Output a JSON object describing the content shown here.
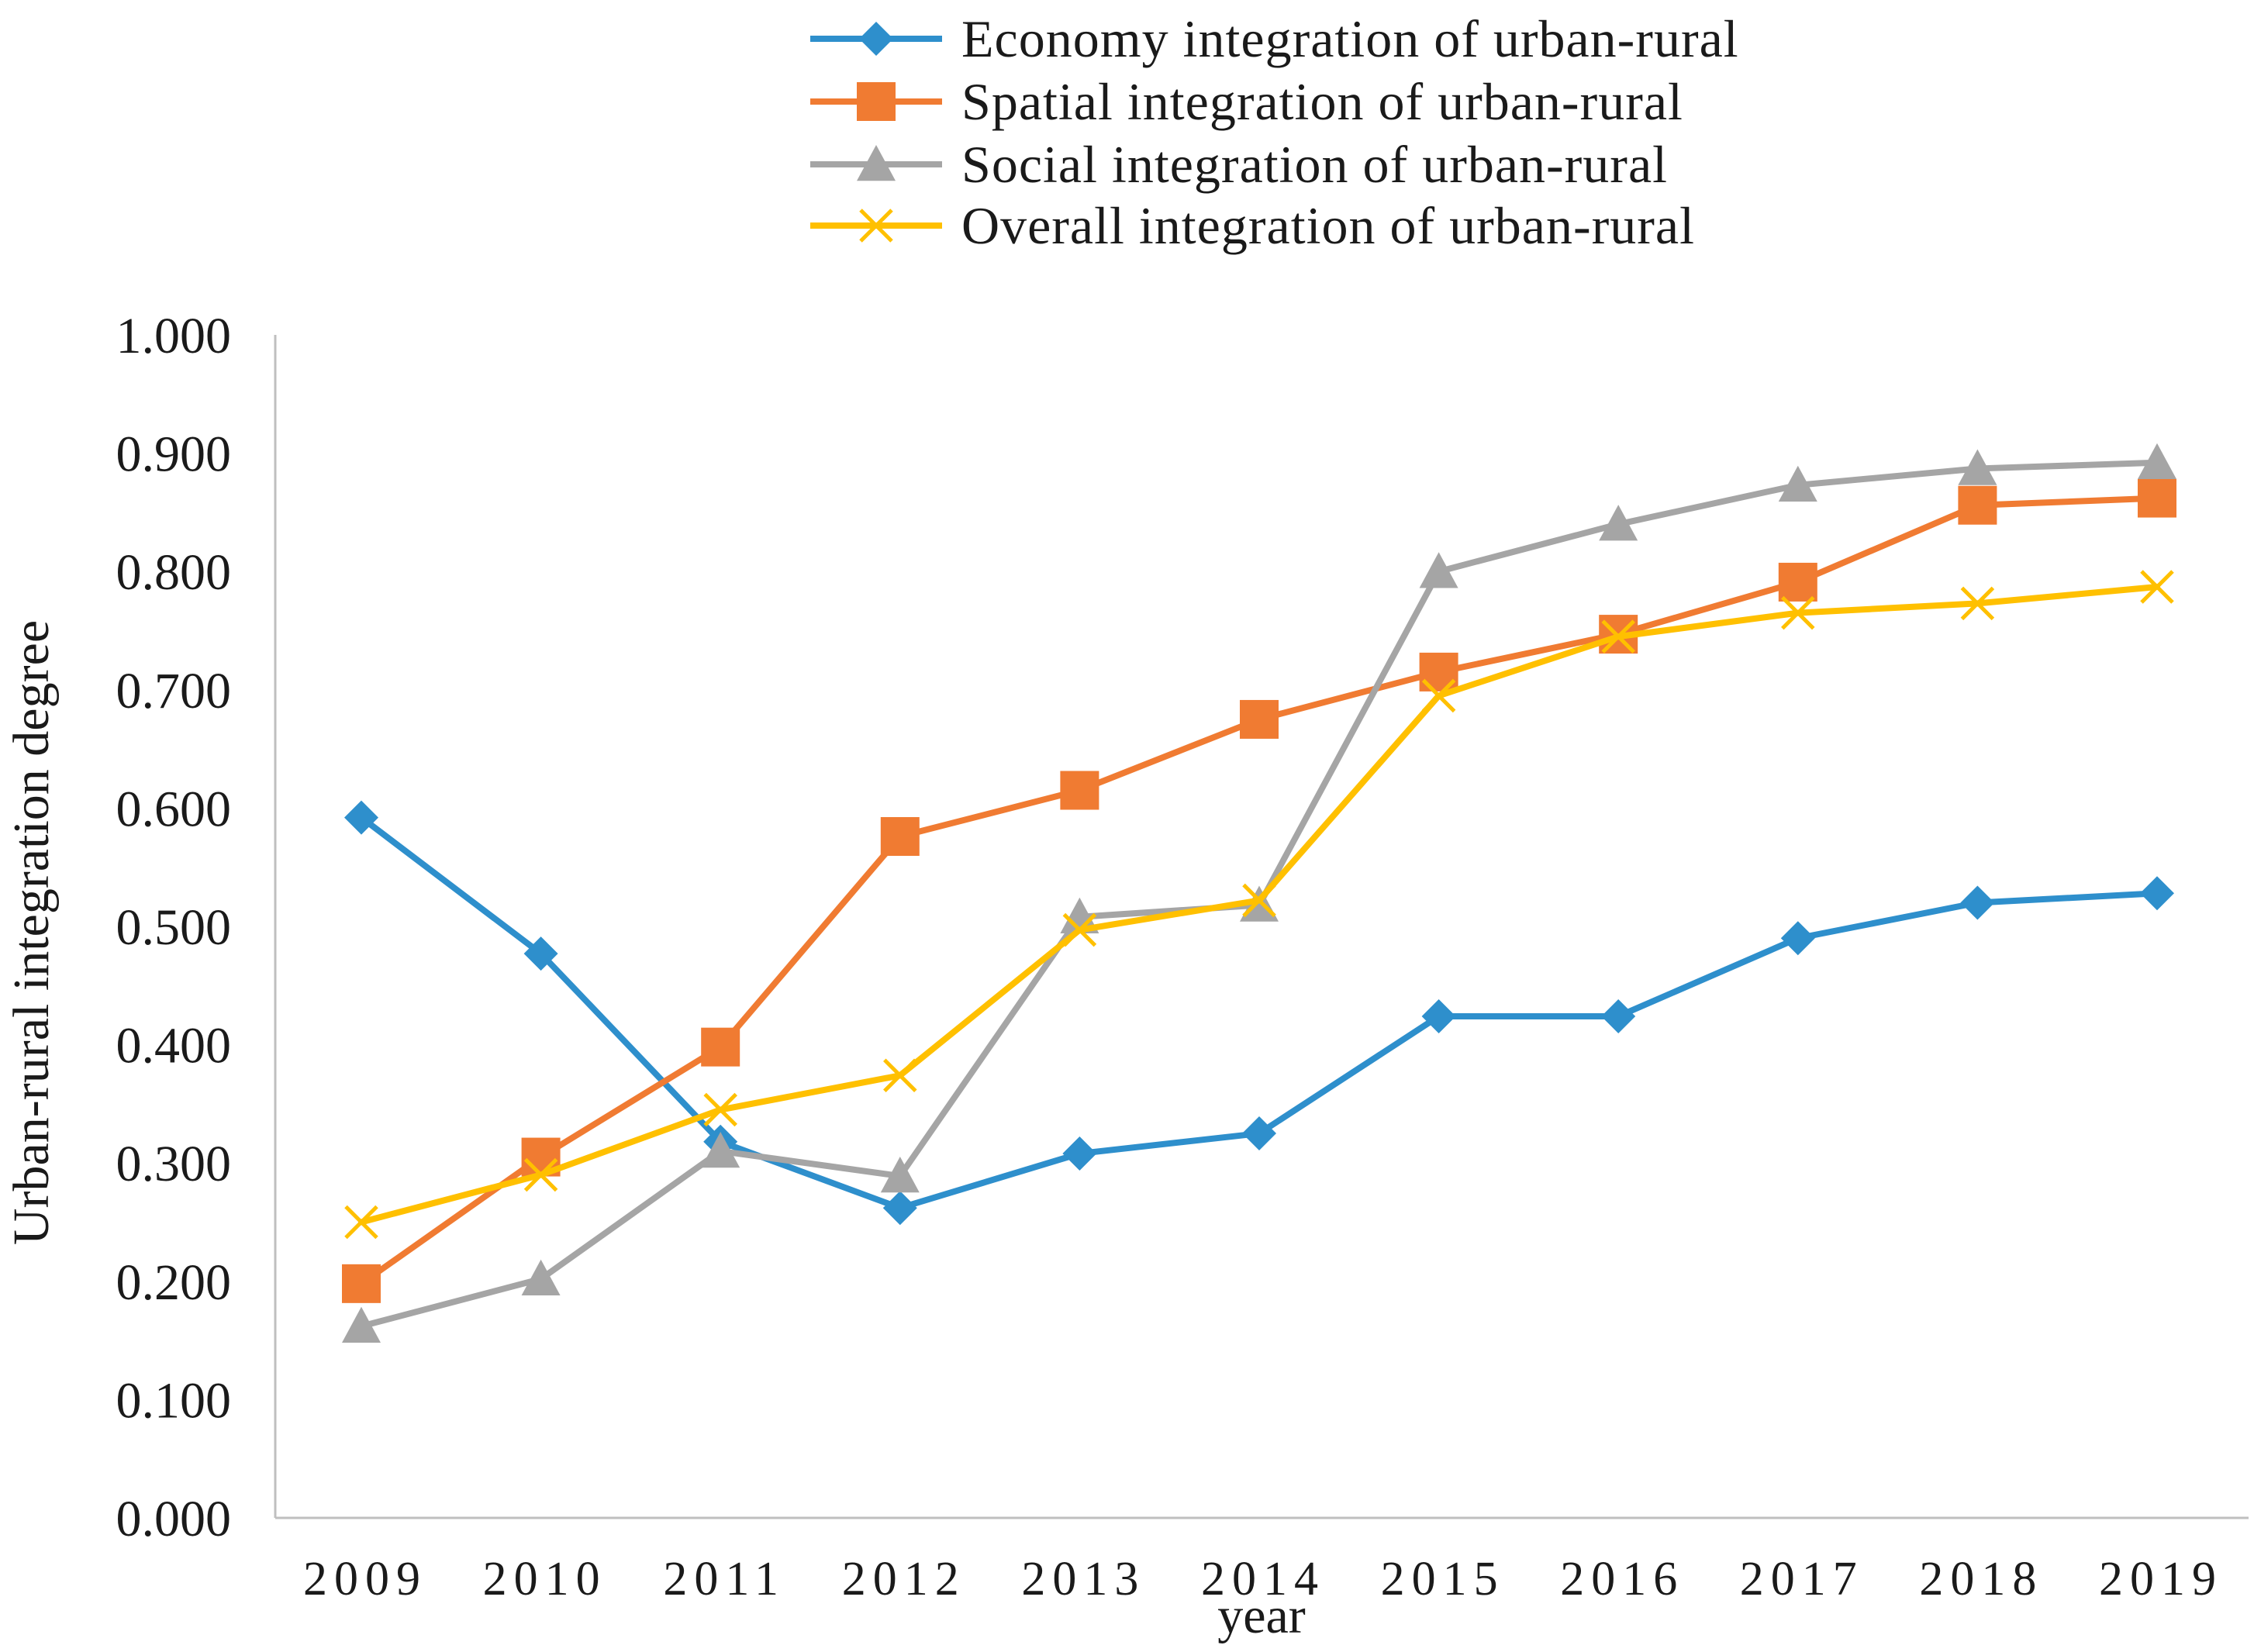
{
  "chart_data": {
    "type": "line",
    "title": "",
    "xlabel": "year",
    "ylabel": "Urban-rural integration degree",
    "categories": [
      "2009",
      "2010",
      "2011",
      "2012",
      "2013",
      "2014",
      "2015",
      "2016",
      "2017",
      "2018",
      "2019"
    ],
    "ylim": [
      0,
      1
    ],
    "yticks": [
      "0.000",
      "0.100",
      "0.200",
      "0.300",
      "0.400",
      "0.500",
      "0.600",
      "0.700",
      "0.800",
      "0.900",
      "1.000"
    ],
    "grid": false,
    "legend_position": "top",
    "series": [
      {
        "name": "Economy integration of urban-rural",
        "color": "#2E8FCC",
        "marker": "diamond",
        "values": [
          0.592,
          0.477,
          0.318,
          0.262,
          0.308,
          0.325,
          0.424,
          0.424,
          0.49,
          0.52,
          0.528
        ]
      },
      {
        "name": "Spatial integration of urban-rural",
        "color": "#F07B32",
        "marker": "square",
        "values": [
          0.198,
          0.305,
          0.398,
          0.576,
          0.615,
          0.675,
          0.715,
          0.747,
          0.791,
          0.856,
          0.862
        ]
      },
      {
        "name": "Social integration of urban-rural",
        "color": "#A5A5A5",
        "marker": "triangle",
        "values": [
          0.162,
          0.202,
          0.31,
          0.289,
          0.508,
          0.518,
          0.8,
          0.84,
          0.873,
          0.887,
          0.892
        ]
      },
      {
        "name": "Overall integration of urban-rural",
        "color": "#FFC000",
        "marker": "x",
        "values": [
          0.25,
          0.29,
          0.345,
          0.374,
          0.497,
          0.522,
          0.695,
          0.745,
          0.765,
          0.773,
          0.787
        ]
      }
    ]
  }
}
